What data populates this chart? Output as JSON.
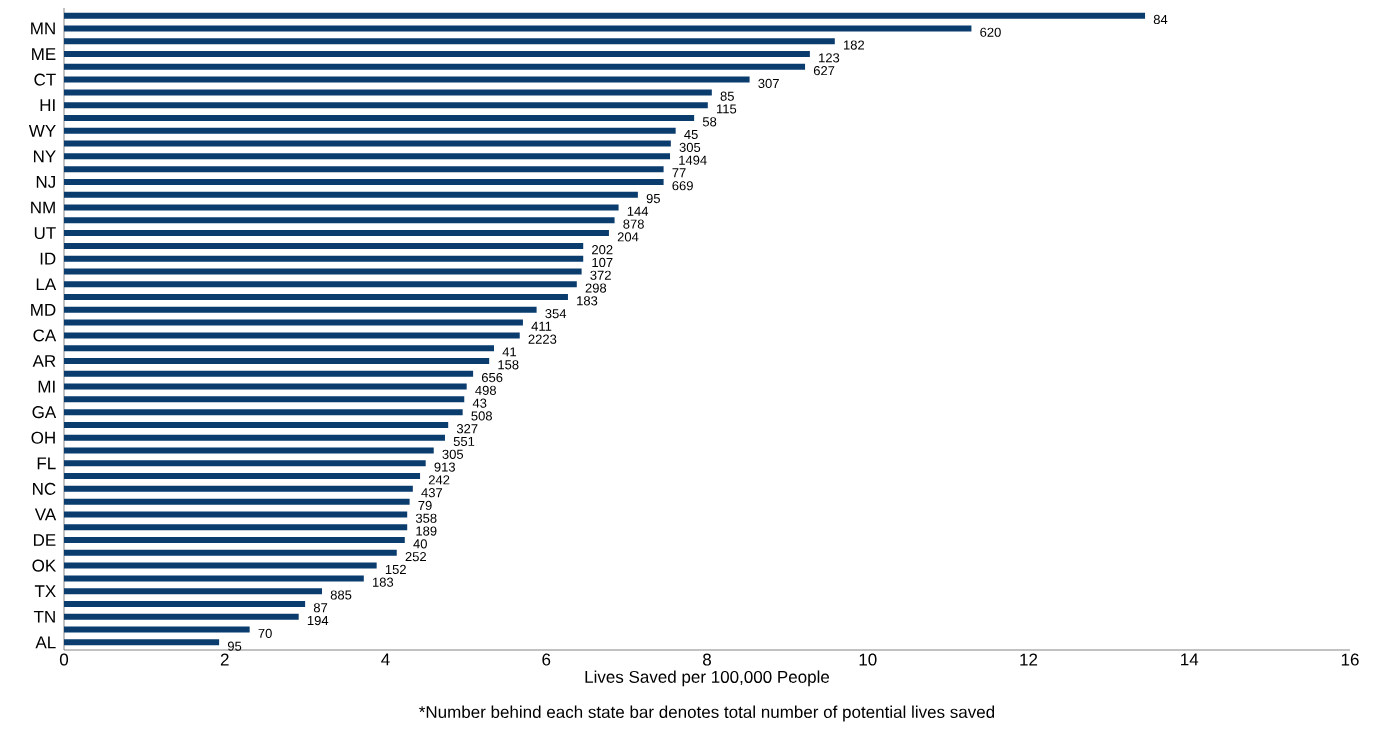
{
  "chart_data": {
    "type": "bar",
    "orientation": "horizontal",
    "categories": [
      null,
      "MN",
      null,
      "ME",
      null,
      "CT",
      null,
      "HI",
      null,
      "WY",
      null,
      "NY",
      null,
      "NJ",
      null,
      "NM",
      null,
      "UT",
      null,
      "ID",
      null,
      "LA",
      null,
      "MD",
      null,
      "CA",
      null,
      "AR",
      null,
      "MI",
      null,
      "GA",
      null,
      "OH",
      null,
      "FL",
      null,
      "NC",
      null,
      "VA",
      null,
      "DE",
      null,
      "OK",
      null,
      "TX",
      null,
      "TN",
      null,
      "AL"
    ],
    "values": [
      13.45,
      11.29,
      9.59,
      9.28,
      9.22,
      8.53,
      8.06,
      8.01,
      7.84,
      7.61,
      7.55,
      7.54,
      7.46,
      7.46,
      7.14,
      6.9,
      6.85,
      6.78,
      6.46,
      6.46,
      6.44,
      6.38,
      6.27,
      5.88,
      5.71,
      5.67,
      5.35,
      5.29,
      5.09,
      5.01,
      4.98,
      4.96,
      4.78,
      4.74,
      4.6,
      4.5,
      4.43,
      4.34,
      4.3,
      4.27,
      4.27,
      4.24,
      4.14,
      3.89,
      3.73,
      3.21,
      3.0,
      2.92,
      2.31,
      1.93
    ],
    "color": "#0b3c6e",
    "xlim": [
      0,
      16
    ],
    "xticks": [
      0,
      2,
      4,
      6,
      8,
      10,
      12,
      14,
      16
    ],
    "xlabel": "Lives Saved per 100,000 People",
    "annotations": [
      {
        "text": "84",
        "x": 13.45
      },
      {
        "text": "620",
        "x": 11.29,
        "y": "MN"
      },
      {
        "text": "182",
        "x": 9.59
      },
      {
        "text": "123",
        "x": 9.28,
        "y": "ME"
      },
      {
        "text": "627",
        "x": 9.22
      },
      {
        "text": "307",
        "x": 8.53,
        "y": "CT"
      },
      {
        "text": "85",
        "x": 8.06
      },
      {
        "text": "115",
        "x": 8.01,
        "y": "HI"
      },
      {
        "text": "58",
        "x": 7.84
      },
      {
        "text": "45",
        "x": 7.61,
        "y": "WY"
      },
      {
        "text": "305",
        "x": 7.55
      },
      {
        "text": "1494",
        "x": 7.54,
        "y": "NY"
      },
      {
        "text": "77",
        "x": 7.46
      },
      {
        "text": "669",
        "x": 7.46,
        "y": "NJ"
      },
      {
        "text": "95",
        "x": 7.14
      },
      {
        "text": "144",
        "x": 6.9,
        "y": "NM"
      },
      {
        "text": "878",
        "x": 6.85
      },
      {
        "text": "204",
        "x": 6.78,
        "y": "UT"
      },
      {
        "text": "202",
        "x": 6.46
      },
      {
        "text": "107",
        "x": 6.46,
        "y": "ID"
      },
      {
        "text": "372",
        "x": 6.44
      },
      {
        "text": "298",
        "x": 6.38,
        "y": "LA"
      },
      {
        "text": "183",
        "x": 6.27
      },
      {
        "text": "354",
        "x": 5.88,
        "y": "MD"
      },
      {
        "text": "411",
        "x": 5.71
      },
      {
        "text": "2223",
        "x": 5.67,
        "y": "CA"
      },
      {
        "text": "41",
        "x": 5.35
      },
      {
        "text": "158",
        "x": 5.29,
        "y": "AR"
      },
      {
        "text": "656",
        "x": 5.09
      },
      {
        "text": "498",
        "x": 5.01,
        "y": "MI"
      },
      {
        "text": "43",
        "x": 4.98
      },
      {
        "text": "508",
        "x": 4.96,
        "y": "GA"
      },
      {
        "text": "327",
        "x": 4.78
      },
      {
        "text": "551",
        "x": 4.74,
        "y": "OH"
      },
      {
        "text": "305",
        "x": 4.6
      },
      {
        "text": "913",
        "x": 4.5,
        "y": "FL"
      },
      {
        "text": "242",
        "x": 4.43
      },
      {
        "text": "437",
        "x": 4.34,
        "y": "NC"
      },
      {
        "text": "79",
        "x": 4.3
      },
      {
        "text": "358",
        "x": 4.27,
        "y": "VA"
      },
      {
        "text": "189",
        "x": 4.27
      },
      {
        "text": "40",
        "x": 4.24,
        "y": "DE"
      },
      {
        "text": "252",
        "x": 4.14
      },
      {
        "text": "152",
        "x": 3.89,
        "y": "OK"
      },
      {
        "text": "183",
        "x": 3.73
      },
      {
        "text": "885",
        "x": 3.21,
        "y": "TX"
      },
      {
        "text": "87",
        "x": 3.0
      },
      {
        "text": "194",
        "x": 2.92,
        "y": "TN"
      },
      {
        "text": "70",
        "x": 2.31
      },
      {
        "text": "95",
        "x": 1.93,
        "y": "AL"
      },
      "*Number behind each state bar denotes total number of potential lives saved"
    ]
  }
}
